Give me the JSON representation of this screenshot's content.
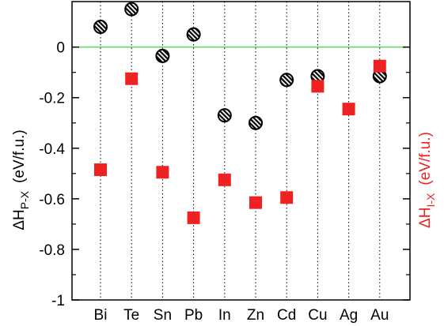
{
  "chart_data": {
    "type": "scatter",
    "title": "",
    "categories": [
      "Bi",
      "Te",
      "Sn",
      "Pb",
      "In",
      "Zn",
      "Cd",
      "Cu",
      "Ag",
      "Au"
    ],
    "ylim": [
      -1,
      0.18
    ],
    "yticks": [
      0,
      -0.2,
      -0.4,
      -0.6,
      -0.8,
      -1
    ],
    "ytick_labels": [
      "0",
      "-0.2",
      "-0.4",
      "-0.6",
      "-0.8",
      "-1"
    ],
    "ylabel_left": {
      "base": "ΔH",
      "sub": "P-X",
      "unit": "(eV/f.u.)"
    },
    "ylabel_right": {
      "base": "ΔH",
      "sub": "I-X",
      "unit": "(eV/f.u.)"
    },
    "zero_line": true,
    "vertical_gridlines": "dotted",
    "series": [
      {
        "marker": "hatched-circle",
        "color": "#000000",
        "values": [
          0.08,
          0.15,
          -0.035,
          0.05,
          -0.27,
          -0.3,
          -0.13,
          -0.115,
          null,
          -0.115
        ]
      },
      {
        "marker": "square",
        "color": "#ee2222",
        "values": [
          -0.485,
          -0.125,
          -0.495,
          -0.675,
          -0.525,
          -0.615,
          -0.595,
          -0.155,
          -0.245,
          -0.075
        ]
      }
    ],
    "colors": {
      "zero_line": "#55dd55",
      "right_axis_label": "#ee2222"
    }
  }
}
